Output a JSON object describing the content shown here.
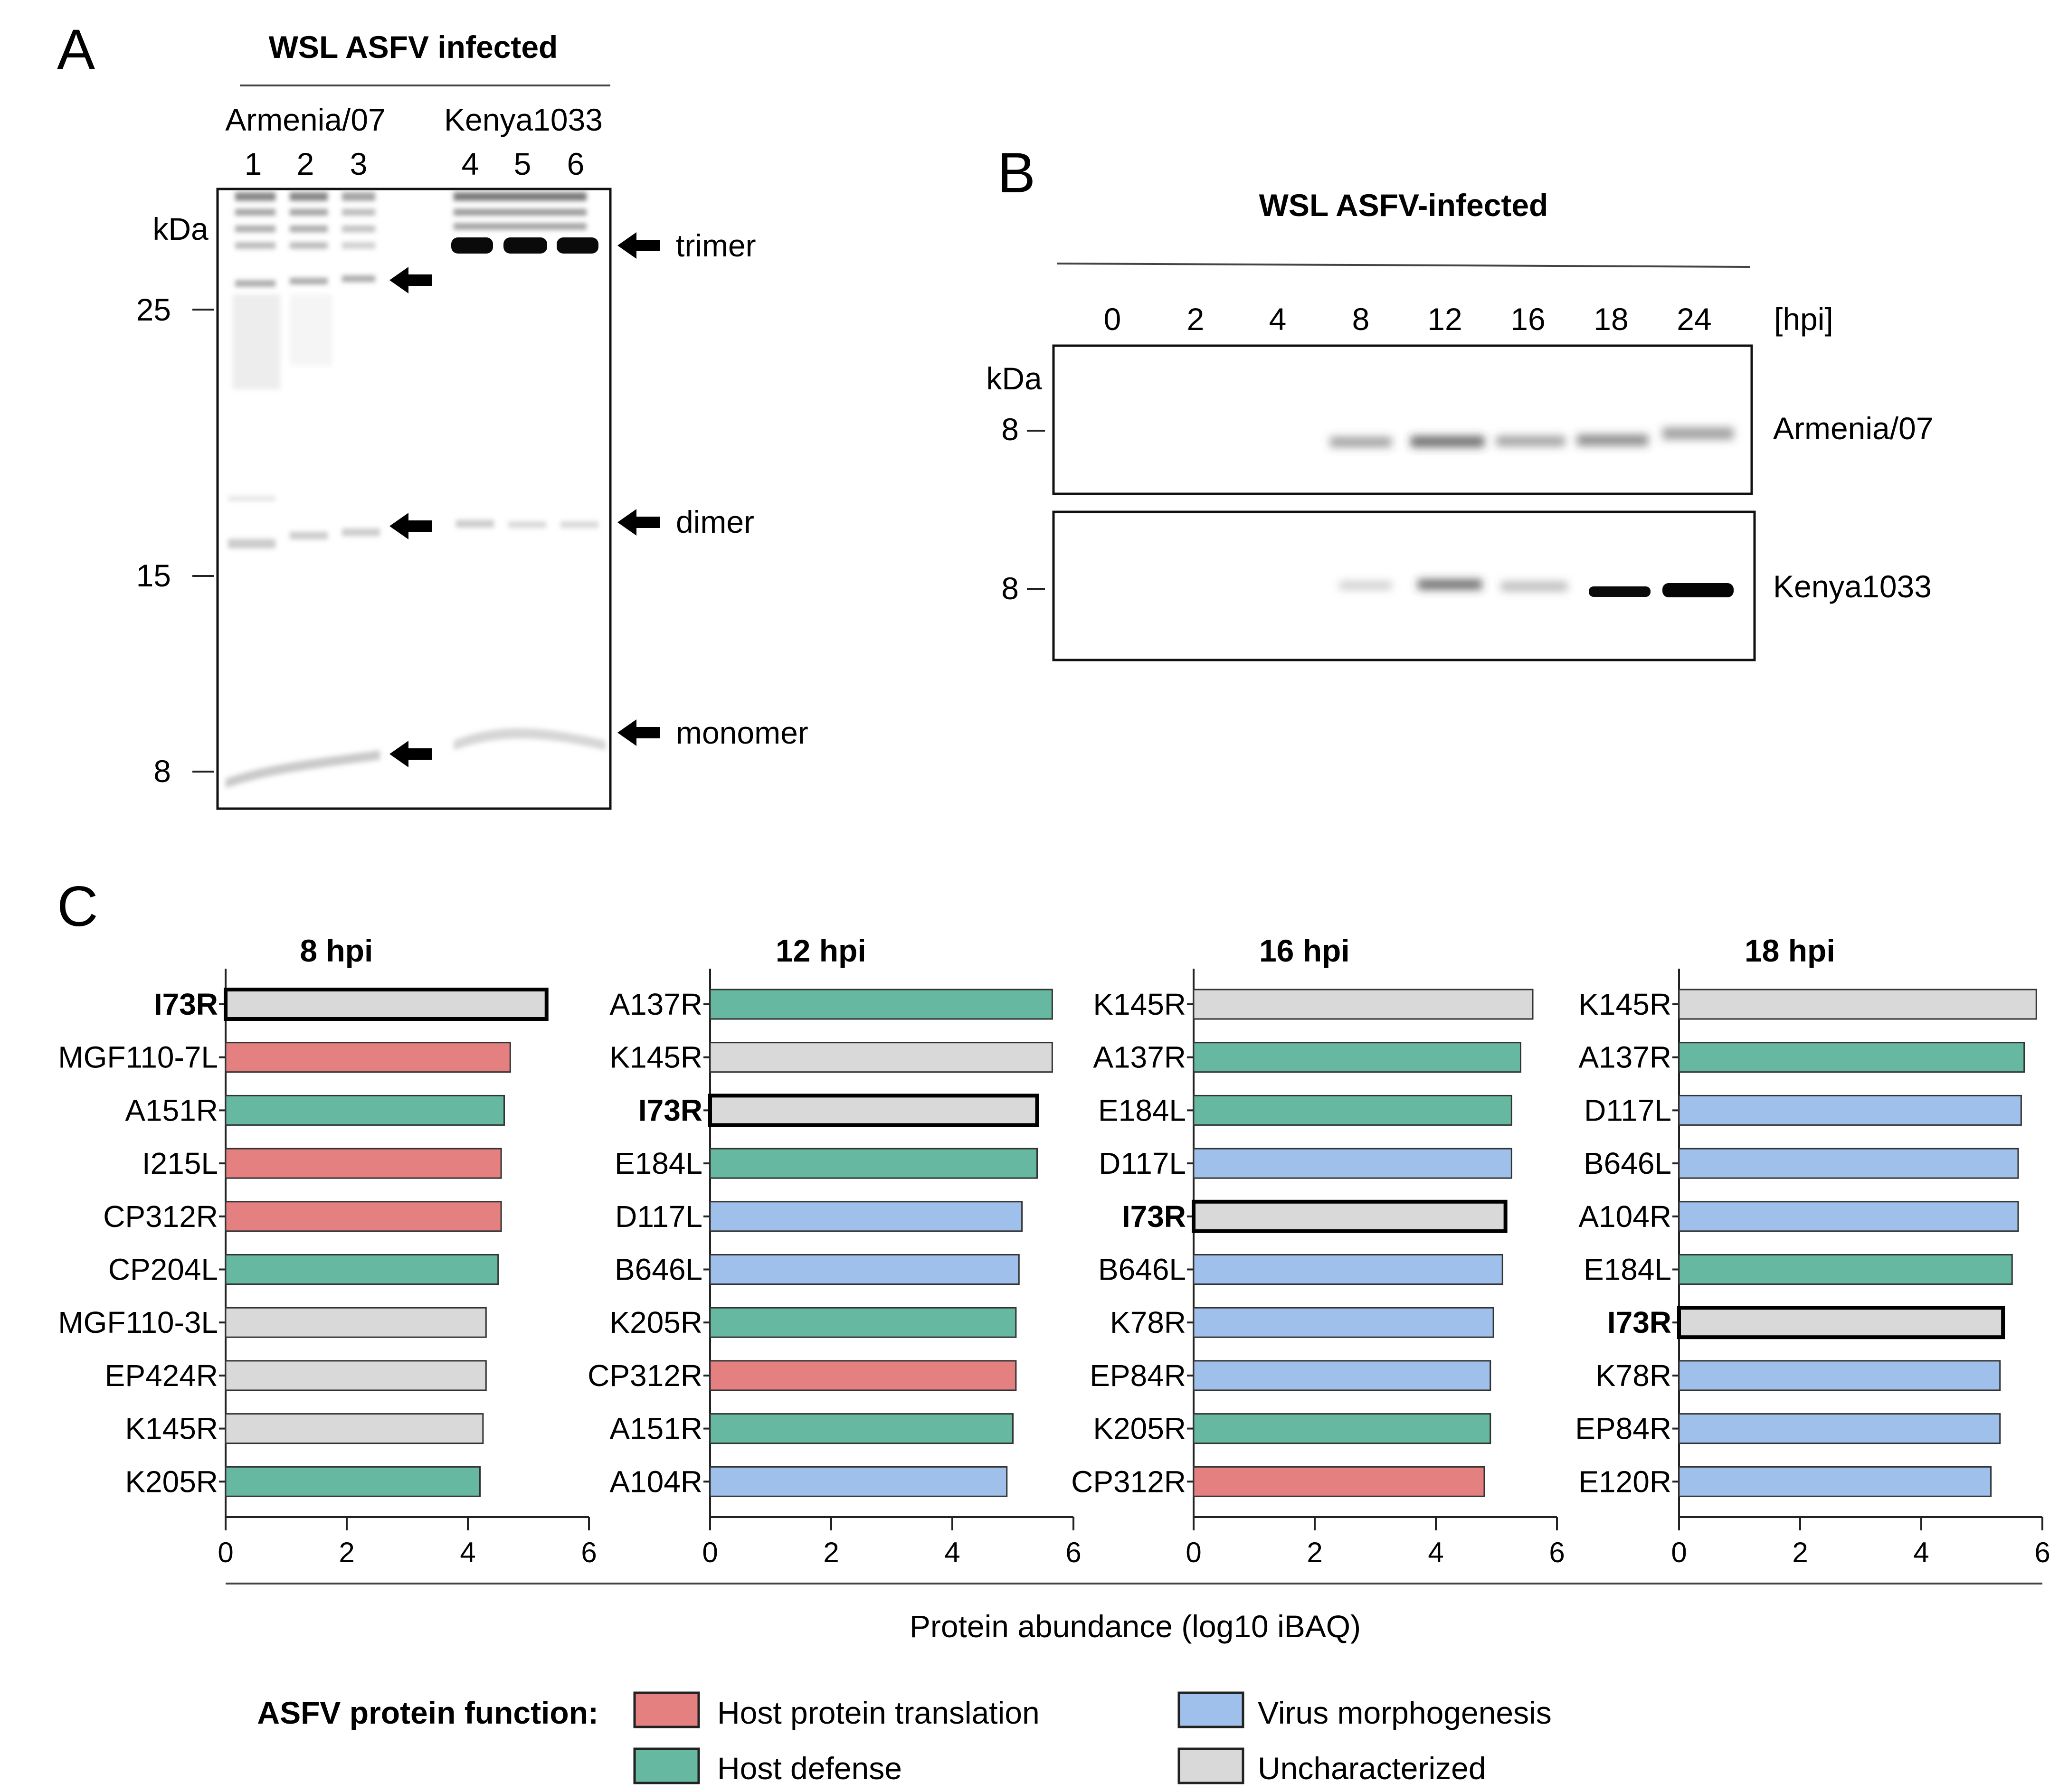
{
  "panel_a": {
    "letter": "A",
    "title": "WSL ASFV infected",
    "strain1": "Armenia/07",
    "strain2": "Kenya1033",
    "lanes": [
      "1",
      "2",
      "3",
      "4",
      "5",
      "6"
    ],
    "kda": "kDa",
    "markers": [
      "25",
      "15",
      "8"
    ],
    "bands": [
      "trimer",
      "dimer",
      "monomer"
    ]
  },
  "panel_b": {
    "letter": "B",
    "title": "WSL ASFV-infected",
    "timepoints": [
      "0",
      "2",
      "4",
      "8",
      "12",
      "16",
      "18",
      "24"
    ],
    "unit": "[hpi]",
    "kda": "kDa",
    "marker_top": "8",
    "marker_bottom": "8",
    "strain_top": "Armenia/07",
    "strain_bottom": "Kenya1033"
  },
  "panel_c": {
    "letter": "C",
    "xlabel": "Protein abundance (log10 iBAQ)",
    "legend_title": "ASFV protein function:",
    "categories": {
      "translation": {
        "label": "Host protein translation",
        "color": "#e58080"
      },
      "defense": {
        "label": "Host defense",
        "color": "#66b8a0"
      },
      "morpho": {
        "label": "Virus morphogenesis",
        "color": "#9fc0ea"
      },
      "unchar": {
        "label": "Uncharacterized",
        "color": "#d9d9d9"
      }
    }
  },
  "chart_data": [
    {
      "type": "bar",
      "orientation": "horizontal",
      "title": "8 hpi",
      "xlim": [
        0,
        6
      ],
      "x_ticks": [
        "0",
        "2",
        "4",
        "6"
      ],
      "categories": [
        "I73R",
        "MGF110-7L",
        "A151R",
        "I215L",
        "CP312R",
        "CP204L",
        "MGF110-3L",
        "EP424R",
        "K145R",
        "K205R"
      ],
      "values": [
        5.3,
        4.7,
        4.6,
        4.55,
        4.55,
        4.5,
        4.3,
        4.3,
        4.25,
        4.2
      ],
      "functions": [
        "unchar",
        "translation",
        "defense",
        "translation",
        "translation",
        "defense",
        "unchar",
        "unchar",
        "unchar",
        "defense"
      ],
      "highlight": "I73R"
    },
    {
      "type": "bar",
      "orientation": "horizontal",
      "title": "12 hpi",
      "xlim": [
        0,
        6
      ],
      "x_ticks": [
        "0",
        "2",
        "4",
        "6"
      ],
      "categories": [
        "A137R",
        "K145R",
        "I73R",
        "E184L",
        "D117L",
        "B646L",
        "K205R",
        "CP312R",
        "A151R",
        "A104R"
      ],
      "values": [
        5.65,
        5.65,
        5.4,
        5.4,
        5.15,
        5.1,
        5.05,
        5.05,
        5.0,
        4.9
      ],
      "functions": [
        "defense",
        "unchar",
        "unchar",
        "defense",
        "morpho",
        "morpho",
        "defense",
        "translation",
        "defense",
        "morpho"
      ],
      "highlight": "I73R"
    },
    {
      "type": "bar",
      "orientation": "horizontal",
      "title": "16 hpi",
      "xlim": [
        0,
        6
      ],
      "x_ticks": [
        "0",
        "2",
        "4",
        "6"
      ],
      "categories": [
        "K145R",
        "A137R",
        "E184L",
        "D117L",
        "I73R",
        "B646L",
        "K78R",
        "EP84R",
        "K205R",
        "CP312R"
      ],
      "values": [
        5.6,
        5.4,
        5.25,
        5.25,
        5.15,
        5.1,
        4.95,
        4.9,
        4.9,
        4.8
      ],
      "functions": [
        "unchar",
        "defense",
        "defense",
        "morpho",
        "unchar",
        "morpho",
        "morpho",
        "morpho",
        "defense",
        "translation"
      ],
      "highlight": "I73R"
    },
    {
      "type": "bar",
      "orientation": "horizontal",
      "title": "18 hpi",
      "xlim": [
        0,
        6
      ],
      "x_ticks": [
        "0",
        "2",
        "4",
        "6"
      ],
      "categories": [
        "K145R",
        "A137R",
        "D117L",
        "B646L",
        "A104R",
        "E184L",
        "I73R",
        "K78R",
        "EP84R",
        "E120R"
      ],
      "values": [
        5.9,
        5.7,
        5.65,
        5.6,
        5.6,
        5.5,
        5.35,
        5.3,
        5.3,
        5.15
      ],
      "functions": [
        "unchar",
        "defense",
        "morpho",
        "morpho",
        "morpho",
        "defense",
        "unchar",
        "morpho",
        "morpho",
        "morpho"
      ],
      "highlight": "I73R"
    }
  ]
}
